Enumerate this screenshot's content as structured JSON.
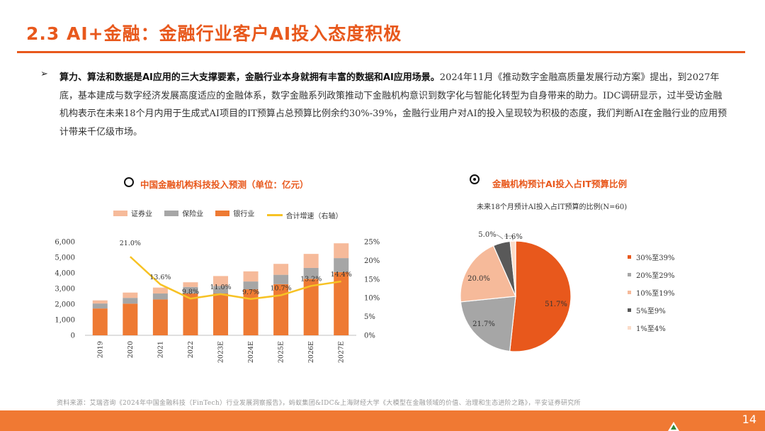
{
  "page": {
    "title": "2.3 AI+金融：金融行业客户AI投入态度积极",
    "bullet_marker": "➢",
    "body_bold": "算力、算法和数据是AI应用的三大支撑要素，金融行业本身就拥有丰富的数据和AI应用场景。",
    "body_text": "2024年11月《推动数字金融高质量发展行动方案》提出，到2027年底，基本建成与数字经济发展高度适应的金融体系，数字金融系列政策推动下金融机构意识到数字化与智能化转型为自身带来的助力。IDC调研显示，过半受访金融机构表示在未来18个月内用于生成式AI项目的IT预算占总预算比例余约30%-39%，金融行业用户对AI的投入呈现较为积极的态度，我们判断AI在金融行业的应用预计带来千亿级市场。",
    "source": "资料来源：艾瑞咨询《2024年中国金融科技（FinTech）行业发展洞察报告》，蚂蚁集团&IDC&上海财经大学《大模型在金融领域的价值、治理和生态进阶之路》，平安证券研究所",
    "page_number": "14"
  },
  "colors": {
    "accent": "#E8581C",
    "securities": "#F6BA9A",
    "insurance": "#A6A6A6",
    "banking": "#EE7A33",
    "growth_line": "#F7C224",
    "pie": [
      "#E8581C",
      "#A6A6A6",
      "#F6BA9A",
      "#595959",
      "#FBDCC9"
    ]
  },
  "chart_data": [
    {
      "type": "bar",
      "stacked": true,
      "title": "中国金融机构科技投入预测（单位：亿元）",
      "categories": [
        "2019",
        "2020",
        "2021",
        "2022",
        "2023E",
        "2024E",
        "2025E",
        "2026E",
        "2027E"
      ],
      "series": [
        {
          "name": "银行业",
          "values": [
            1720,
            2030,
            2300,
            2680,
            2680,
            2950,
            3280,
            3620,
            4050
          ]
        },
        {
          "name": "保险业",
          "values": [
            320,
            370,
            380,
            420,
            480,
            500,
            600,
            700,
            900
          ]
        },
        {
          "name": "证券业",
          "values": [
            200,
            340,
            380,
            300,
            640,
            650,
            700,
            900,
            950
          ]
        }
      ],
      "line_series": {
        "name": "合计增速（右轴）",
        "values": [
          null,
          21.0,
          13.6,
          9.8,
          11.0,
          9.7,
          10.7,
          13.2,
          14.4
        ]
      },
      "line_labels": [
        "",
        "21.0%",
        "13.6%",
        "9.8%",
        "11.0%",
        "9.7%",
        "10.7%",
        "13.2%",
        "14.4%"
      ],
      "y_left": {
        "ylim": [
          0,
          6000
        ],
        "ticks": [
          "0",
          "1,000",
          "2,000",
          "3,000",
          "4,000",
          "5,000",
          "6,000"
        ]
      },
      "y_right": {
        "ylim": [
          0,
          25
        ],
        "ticks": [
          "0%",
          "5%",
          "10%",
          "15%",
          "20%",
          "25%"
        ]
      },
      "legend": [
        "证券业",
        "保险业",
        "银行业",
        "合计增速（右轴）"
      ],
      "legend_position": "top"
    },
    {
      "type": "pie",
      "title": "金融机构预计AI投入占IT预算比例",
      "subtitle": "未来18个月预计AI投入占IT预算的比例(N=60)",
      "slices": [
        {
          "name": "30%至39%",
          "value": 51.7,
          "label": "51.7%"
        },
        {
          "name": "20%至29%",
          "value": 21.7,
          "label": "21.7%"
        },
        {
          "name": "10%至19%",
          "value": 20.0,
          "label": "20.0%"
        },
        {
          "name": "5%至9%",
          "value": 5.0,
          "label": "5.0%"
        },
        {
          "name": "1%至4%",
          "value": 1.6,
          "label": "1.6%"
        }
      ],
      "legend_position": "right"
    }
  ]
}
